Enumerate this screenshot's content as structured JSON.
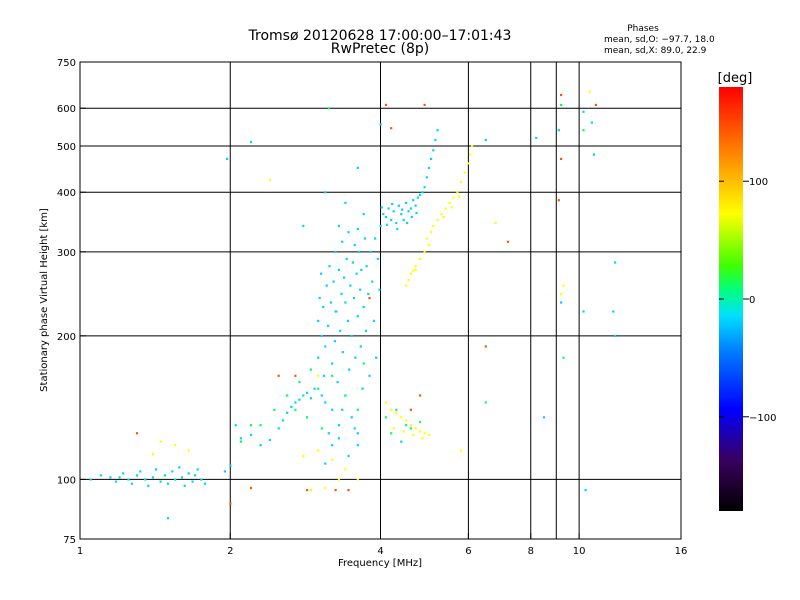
{
  "chart_data": {
    "type": "scatter",
    "title": "Tromsø 20120628 17:00:00–17:01:43",
    "subtitle": "RwPretec (8p)",
    "xlabel": "Frequency [MHz]",
    "ylabel": "Stationary phase Virtual Height [km]",
    "x_scale": "log",
    "y_scale": "log",
    "xlim": [
      1,
      16
    ],
    "ylim": [
      75,
      750
    ],
    "x_ticks": [
      1,
      2,
      4,
      6,
      8,
      10,
      16
    ],
    "x_tick_labels": [
      "1",
      "2",
      "4",
      "6",
      "8",
      "10",
      "16"
    ],
    "y_ticks": [
      75,
      100,
      200,
      300,
      400,
      500,
      600,
      750
    ],
    "y_tick_labels": [
      "75",
      "100",
      "200",
      "300",
      "400",
      "500",
      "600",
      "750"
    ],
    "grid_x": [
      2,
      4,
      6,
      8,
      10
    ],
    "grid_x_extra": [
      9
    ],
    "grid_y": [
      100,
      200,
      300,
      400,
      500,
      600
    ],
    "grid": true,
    "phases_box": {
      "title": "Phases",
      "line1": "mean, sd,O: −97.7, 18.0",
      "line2": "mean, sd,X:  89.0, 22.9"
    },
    "colorbar": {
      "label": "[deg]",
      "min": -180,
      "max": 180,
      "ticks": [
        100,
        0,
        -100
      ],
      "tick_labels": [
        "100",
        "0",
        "−100"
      ],
      "colormap": "rainbow"
    },
    "series": [
      {
        "color_value": -105,
        "points": [
          [
            1.05,
            100
          ],
          [
            1.1,
            102
          ],
          [
            1.15,
            101
          ],
          [
            1.18,
            99
          ],
          [
            1.2,
            101
          ],
          [
            1.22,
            103
          ],
          [
            1.25,
            100
          ],
          [
            1.27,
            98
          ],
          [
            1.3,
            102
          ],
          [
            1.32,
            104
          ],
          [
            1.35,
            100
          ],
          [
            1.37,
            97
          ],
          [
            1.4,
            101
          ],
          [
            1.42,
            105
          ],
          [
            1.45,
            99
          ],
          [
            1.48,
            102
          ],
          [
            1.5,
            98
          ],
          [
            1.53,
            104
          ],
          [
            1.55,
            100
          ],
          [
            1.58,
            106
          ],
          [
            1.6,
            101
          ],
          [
            1.62,
            97
          ],
          [
            1.65,
            103
          ],
          [
            1.68,
            99
          ],
          [
            1.7,
            102
          ],
          [
            1.72,
            105
          ],
          [
            1.75,
            100
          ],
          [
            1.78,
            98
          ],
          [
            1.5,
            83
          ],
          [
            1.95,
            104
          ],
          [
            2.0,
            107
          ],
          [
            2.05,
            130
          ],
          [
            2.1,
            122
          ],
          [
            2.2,
            124
          ],
          [
            2.3,
            118
          ],
          [
            2.4,
            121
          ],
          [
            2.5,
            128
          ],
          [
            2.55,
            133
          ],
          [
            2.6,
            138
          ],
          [
            2.65,
            142
          ],
          [
            2.7,
            145
          ],
          [
            2.75,
            147
          ],
          [
            2.8,
            150
          ],
          [
            2.85,
            152
          ],
          [
            2.9,
            148
          ],
          [
            2.95,
            155
          ],
          [
            3.0,
            180
          ],
          [
            3.0,
            215
          ],
          [
            3.02,
            240
          ],
          [
            3.04,
            270
          ],
          [
            3.05,
            200
          ],
          [
            3.07,
            230
          ],
          [
            3.08,
            165
          ],
          [
            3.1,
            190
          ],
          [
            3.1,
            145
          ],
          [
            3.12,
            255
          ],
          [
            3.14,
            210
          ],
          [
            3.15,
            125
          ],
          [
            3.16,
            280
          ],
          [
            3.18,
            235
          ],
          [
            3.2,
            175
          ],
          [
            3.2,
            140
          ],
          [
            3.22,
            260
          ],
          [
            3.24,
            195
          ],
          [
            3.25,
            300
          ],
          [
            3.26,
            225
          ],
          [
            3.28,
            160
          ],
          [
            3.3,
            275
          ],
          [
            3.3,
            130
          ],
          [
            3.32,
            205
          ],
          [
            3.34,
            245
          ],
          [
            3.35,
            315
          ],
          [
            3.36,
            185
          ],
          [
            3.38,
            265
          ],
          [
            3.4,
            150
          ],
          [
            3.4,
            235
          ],
          [
            3.42,
            290
          ],
          [
            3.44,
            215
          ],
          [
            3.45,
            330
          ],
          [
            3.46,
            170
          ],
          [
            3.48,
            255
          ],
          [
            3.5,
            135
          ],
          [
            3.5,
            200
          ],
          [
            3.52,
            285
          ],
          [
            3.54,
            240
          ],
          [
            3.55,
            310
          ],
          [
            3.56,
            180
          ],
          [
            3.58,
            270
          ],
          [
            3.6,
            220
          ],
          [
            3.6,
            125
          ],
          [
            3.62,
            300
          ],
          [
            3.64,
            250
          ],
          [
            3.65,
            190
          ],
          [
            3.66,
            275
          ],
          [
            3.68,
            155
          ],
          [
            3.7,
            230
          ],
          [
            3.72,
            320
          ],
          [
            3.74,
            205
          ],
          [
            3.75,
            280
          ],
          [
            3.78,
            245
          ],
          [
            3.8,
            165
          ],
          [
            3.82,
            300
          ],
          [
            3.85,
            260
          ],
          [
            3.88,
            215
          ],
          [
            3.9,
            320
          ],
          [
            3.92,
            180
          ],
          [
            3.95,
            290
          ],
          [
            3.98,
            250
          ],
          [
            3.3,
            340
          ],
          [
            3.6,
            335
          ],
          [
            3.1,
            400
          ],
          [
            2.8,
            340
          ],
          [
            3.6,
            450
          ],
          [
            3.4,
            380
          ],
          [
            3.7,
            360
          ],
          [
            3.25,
            225
          ],
          [
            3.05,
            150
          ],
          [
            3.35,
            140
          ],
          [
            3.55,
            128
          ],
          [
            3.2,
            118
          ],
          [
            3.45,
            112
          ],
          [
            3.1,
            108
          ],
          [
            3.6,
            118
          ],
          [
            3.3,
            122
          ],
          [
            4.0,
            340
          ],
          [
            4.05,
            360
          ],
          [
            4.1,
            355
          ],
          [
            4.15,
            370
          ],
          [
            4.2,
            350
          ],
          [
            4.25,
            365
          ],
          [
            4.3,
            345
          ],
          [
            4.35,
            375
          ],
          [
            4.4,
            360
          ],
          [
            4.45,
            350
          ],
          [
            4.5,
            380
          ],
          [
            4.55,
            365
          ],
          [
            4.6,
            370
          ],
          [
            4.65,
            385
          ],
          [
            4.7,
            375
          ],
          [
            4.75,
            390
          ],
          [
            4.8,
            395
          ],
          [
            4.85,
            400
          ],
          [
            4.9,
            410
          ],
          [
            4.95,
            430
          ],
          [
            5.0,
            450
          ],
          [
            5.05,
            470
          ],
          [
            5.1,
            490
          ],
          [
            5.15,
            515
          ],
          [
            5.2,
            540
          ],
          [
            4.02,
            372
          ],
          [
            4.12,
            342
          ],
          [
            4.22,
            378
          ],
          [
            4.32,
            335
          ],
          [
            4.42,
            368
          ],
          [
            4.52,
            345
          ],
          [
            4.62,
            355
          ],
          [
            4.72,
            362
          ],
          [
            4.0,
            555
          ],
          [
            2.2,
            510
          ],
          [
            1.97,
            470
          ],
          [
            10.2,
            590
          ],
          [
            11.8,
            285
          ],
          [
            11.7,
            225
          ],
          [
            11.8,
            200
          ],
          [
            10.6,
            560
          ],
          [
            9.1,
            540
          ],
          [
            8.2,
            520
          ],
          [
            8.5,
            135
          ],
          [
            9.2,
            235
          ],
          [
            10.7,
            480
          ],
          [
            6.5,
            515
          ],
          [
            10.2,
            225
          ],
          [
            10.3,
            95
          ],
          [
            4.4,
            120
          ]
        ]
      },
      {
        "color_value": -40,
        "points": [
          [
            2.1,
            120
          ],
          [
            2.3,
            130
          ],
          [
            2.45,
            140
          ],
          [
            2.6,
            150
          ],
          [
            2.75,
            160
          ],
          [
            2.9,
            170
          ],
          [
            3.0,
            155
          ],
          [
            3.2,
            165
          ],
          [
            3.4,
            150
          ],
          [
            3.6,
            140
          ],
          [
            4.1,
            135
          ],
          [
            4.3,
            140
          ],
          [
            4.5,
            130
          ],
          [
            2.7,
            140
          ],
          [
            2.85,
            135
          ],
          [
            3.05,
            128
          ],
          [
            3.15,
            600
          ],
          [
            9.3,
            180
          ],
          [
            10.2,
            540
          ],
          [
            9.2,
            610
          ],
          [
            4.2,
            125
          ],
          [
            2.2,
            130
          ],
          [
            4.6,
            128
          ],
          [
            4.8,
            132
          ],
          [
            6.5,
            145
          ],
          [
            3.7,
            175
          ]
        ]
      },
      {
        "color_value": 90,
        "points": [
          [
            4.5,
            255
          ],
          [
            4.6,
            270
          ],
          [
            4.7,
            280
          ],
          [
            4.8,
            290
          ],
          [
            4.9,
            300
          ],
          [
            5.0,
            310
          ],
          [
            4.95,
            320
          ],
          [
            5.05,
            330
          ],
          [
            5.1,
            340
          ],
          [
            5.2,
            350
          ],
          [
            5.3,
            360
          ],
          [
            5.4,
            370
          ],
          [
            5.5,
            380
          ],
          [
            5.6,
            390
          ],
          [
            5.7,
            400
          ],
          [
            5.8,
            420
          ],
          [
            5.9,
            440
          ],
          [
            6.0,
            460
          ],
          [
            6.05,
            480
          ],
          [
            5.35,
            355
          ],
          [
            5.55,
            372
          ],
          [
            5.75,
            392
          ],
          [
            4.55,
            262
          ],
          [
            4.65,
            274
          ],
          [
            4.1,
            145
          ],
          [
            4.2,
            140
          ],
          [
            4.3,
            138
          ],
          [
            4.4,
            135
          ],
          [
            4.5,
            133
          ],
          [
            4.6,
            130
          ],
          [
            4.7,
            128
          ],
          [
            4.8,
            126
          ],
          [
            4.9,
            125
          ],
          [
            5.0,
            124
          ],
          [
            4.25,
            128
          ],
          [
            4.45,
            126
          ],
          [
            4.65,
            124
          ],
          [
            4.85,
            122
          ],
          [
            2.9,
            95
          ],
          [
            3.1,
            96
          ],
          [
            3.3,
            100
          ],
          [
            3.2,
            110
          ],
          [
            2.8,
            112
          ],
          [
            3.0,
            115
          ],
          [
            3.4,
            105
          ],
          [
            3.6,
            100
          ],
          [
            1.45,
            120
          ],
          [
            1.55,
            118
          ],
          [
            1.65,
            115
          ],
          [
            1.4,
            113
          ],
          [
            10.5,
            650
          ],
          [
            6.8,
            345
          ],
          [
            5.8,
            115
          ],
          [
            2.4,
            425
          ],
          [
            3.0,
            165
          ],
          [
            4.7,
            275
          ],
          [
            6.1,
            500
          ],
          [
            9.3,
            255
          ],
          [
            9.2,
            245
          ]
        ]
      },
      {
        "color_value": 150,
        "points": [
          [
            1.3,
            125
          ],
          [
            2.0,
            89
          ],
          [
            2.2,
            96
          ],
          [
            2.5,
            165
          ],
          [
            2.85,
            95
          ],
          [
            3.25,
            95
          ],
          [
            4.2,
            545
          ],
          [
            4.9,
            610
          ],
          [
            9.2,
            640
          ],
          [
            9.1,
            385
          ],
          [
            9.2,
            470
          ],
          [
            10.8,
            610
          ],
          [
            4.8,
            150
          ],
          [
            4.6,
            140
          ],
          [
            3.45,
            95
          ],
          [
            2.7,
            165
          ],
          [
            3.8,
            240
          ],
          [
            7.2,
            315
          ],
          [
            6.5,
            190
          ],
          [
            4.1,
            610
          ]
        ]
      }
    ]
  }
}
